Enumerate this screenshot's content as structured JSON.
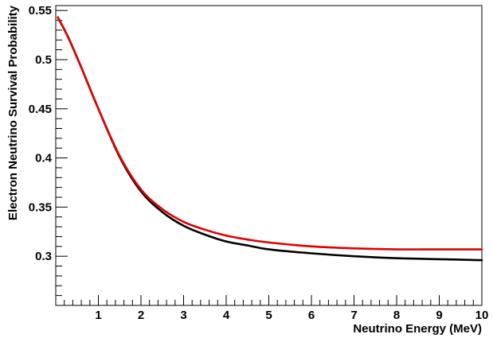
{
  "chart_data": {
    "type": "line",
    "title": "",
    "xlabel": "Neutrino Energy (MeV)",
    "ylabel": "Electron Neutrino Survival Probability",
    "xlim": [
      0,
      10
    ],
    "ylim": [
      0.25,
      0.555
    ],
    "x_ticks": [
      1,
      2,
      3,
      4,
      5,
      6,
      7,
      8,
      9,
      10
    ],
    "x_tick_labels": [
      "1",
      "2",
      "3",
      "4",
      "5",
      "6",
      "7",
      "8",
      "9",
      "10"
    ],
    "y_ticks": [
      0.3,
      0.35,
      0.4,
      0.45,
      0.5,
      0.55
    ],
    "y_tick_labels": [
      "0.3",
      "0.35",
      "0.4",
      "0.45",
      "0.5",
      "0.55"
    ],
    "grid": false,
    "legend": "none",
    "series": [
      {
        "color": "#000000",
        "x": [
          0.05,
          0.3,
          0.6,
          1.0,
          1.5,
          2.0,
          2.5,
          3.0,
          3.5,
          4.0,
          4.5,
          5.0,
          6.0,
          7.0,
          8.0,
          9.0,
          10.0
        ],
        "values": [
          0.543,
          0.522,
          0.492,
          0.45,
          0.401,
          0.366,
          0.345,
          0.331,
          0.322,
          0.315,
          0.311,
          0.307,
          0.303,
          0.3,
          0.298,
          0.297,
          0.296
        ]
      },
      {
        "color": "#e00000",
        "x": [
          0.05,
          0.3,
          0.6,
          1.0,
          1.5,
          2.0,
          2.5,
          3.0,
          3.5,
          4.0,
          4.5,
          5.0,
          6.0,
          7.0,
          8.0,
          9.0,
          10.0
        ],
        "values": [
          0.543,
          0.522,
          0.492,
          0.45,
          0.402,
          0.368,
          0.348,
          0.335,
          0.327,
          0.321,
          0.317,
          0.314,
          0.31,
          0.308,
          0.307,
          0.307,
          0.307
        ]
      }
    ]
  }
}
